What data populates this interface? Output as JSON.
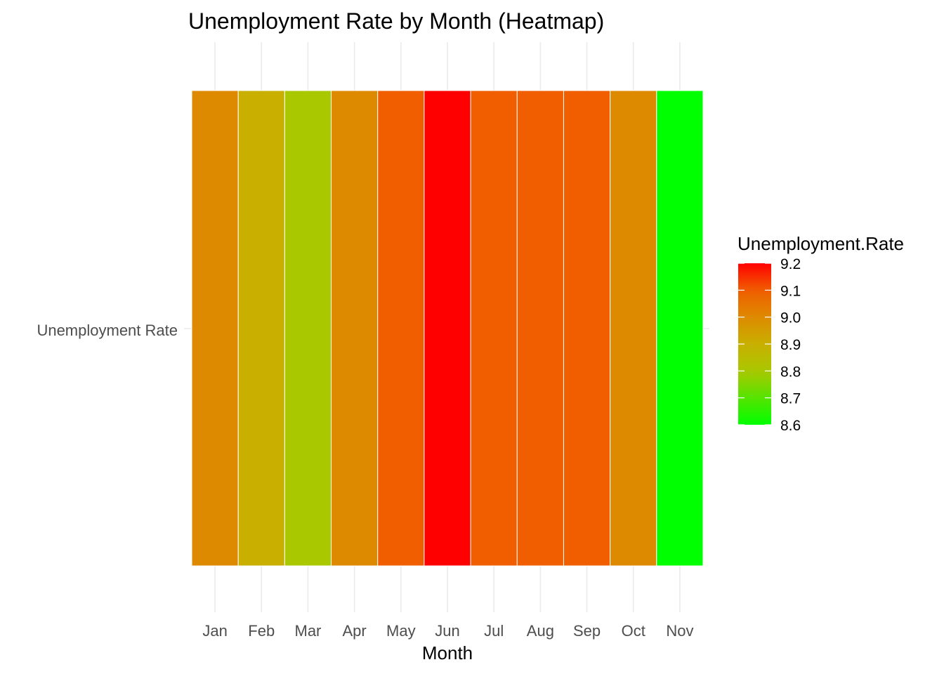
{
  "chart_data": {
    "type": "heatmap",
    "title": "Unemployment Rate by Month (Heatmap)",
    "xlabel": "Month",
    "ylabel": "",
    "row_label": "Unemployment Rate",
    "categories": [
      "Jan",
      "Feb",
      "Mar",
      "Apr",
      "May",
      "Jun",
      "Jul",
      "Aug",
      "Sep",
      "Oct",
      "Nov"
    ],
    "values": [
      9.0,
      8.9,
      8.8,
      9.0,
      9.1,
      9.2,
      9.1,
      9.1,
      9.1,
      9.0,
      8.6
    ],
    "legend": {
      "title": "Unemployment.Rate",
      "position": "right",
      "min": 8.6,
      "max": 9.2,
      "ticks": [
        "9.2",
        "9.1",
        "9.0",
        "8.9",
        "8.8",
        "8.7",
        "8.6"
      ]
    },
    "colors": {
      "low": "#00ff00",
      "high": "#ff0000"
    },
    "grid": true
  }
}
